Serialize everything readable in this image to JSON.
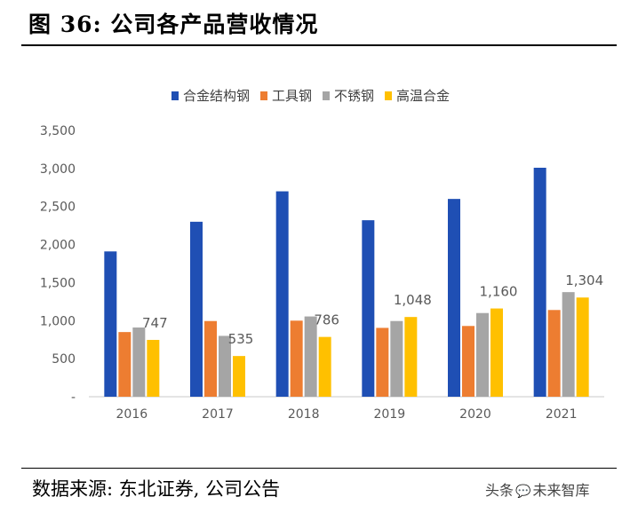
{
  "header": {
    "title": "图  36:  公司各产品营收情况"
  },
  "footer": {
    "source": "数据来源:  东北证券,  公司公告",
    "watermark_prefix": "头条",
    "watermark_icon": "chat-bubble-icon",
    "watermark_name": "未来智库"
  },
  "colors": {
    "alloy_structural_steel": "#1F4FB4",
    "tool_steel": "#ED7D31",
    "stainless_steel": "#A5A5A5",
    "superalloy": "#FFC000",
    "axis": "#C8C8C8",
    "tick_text": "#595959"
  },
  "chart_data": {
    "type": "bar",
    "title": "",
    "xlabel": "",
    "ylabel": "",
    "categories": [
      "2016",
      "2017",
      "2018",
      "2019",
      "2020",
      "2021"
    ],
    "ylim": [
      0,
      3500
    ],
    "yticks": [
      0,
      500,
      1000,
      1500,
      2000,
      2500,
      3000,
      3500
    ],
    "ytick_labels": [
      "-",
      "500",
      "1,000",
      "1,500",
      "2,000",
      "2,500",
      "3,000",
      "3,500"
    ],
    "legend_position": "top-center",
    "grid": false,
    "series": [
      {
        "name": "合金结构钢",
        "color": "#1F4FB4",
        "values": [
          1910,
          2300,
          2700,
          2320,
          2600,
          3010
        ]
      },
      {
        "name": "工具钢",
        "color": "#ED7D31",
        "values": [
          850,
          995,
          1000,
          905,
          930,
          1140
        ]
      },
      {
        "name": "不锈钢",
        "color": "#A5A5A5",
        "values": [
          910,
          800,
          1055,
          995,
          1100,
          1375
        ]
      },
      {
        "name": "高温合金",
        "color": "#FFC000",
        "values": [
          747,
          535,
          786,
          1048,
          1160,
          1304
        ]
      }
    ],
    "data_labels": [
      {
        "series": 3,
        "index": 0,
        "text": "747"
      },
      {
        "series": 3,
        "index": 1,
        "text": "535"
      },
      {
        "series": 3,
        "index": 2,
        "text": "786"
      },
      {
        "series": 3,
        "index": 3,
        "text": "1,048"
      },
      {
        "series": 3,
        "index": 4,
        "text": "1,160"
      },
      {
        "series": 3,
        "index": 5,
        "text": "1,304"
      }
    ]
  }
}
